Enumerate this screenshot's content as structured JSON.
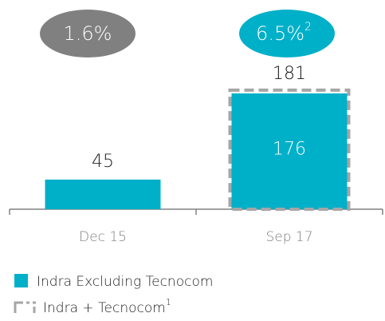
{
  "chart_data": {
    "type": "bar",
    "categories": [
      "Dec 15",
      "Sep 17"
    ],
    "series": [
      {
        "name": "Indra Excluding Tecnocom",
        "color": "#00b0c8",
        "values": [
          45,
          176
        ]
      },
      {
        "name": "Indra + Tecnocom",
        "footnote": "1",
        "color": "#a6a6a6",
        "style": "dashed",
        "values": [
          null,
          181
        ]
      }
    ],
    "annotations": [
      {
        "text": "1.6%",
        "color": "#808080"
      },
      {
        "text": "6.5%",
        "footnote": "2",
        "color": "#00b0c8"
      }
    ]
  }
}
